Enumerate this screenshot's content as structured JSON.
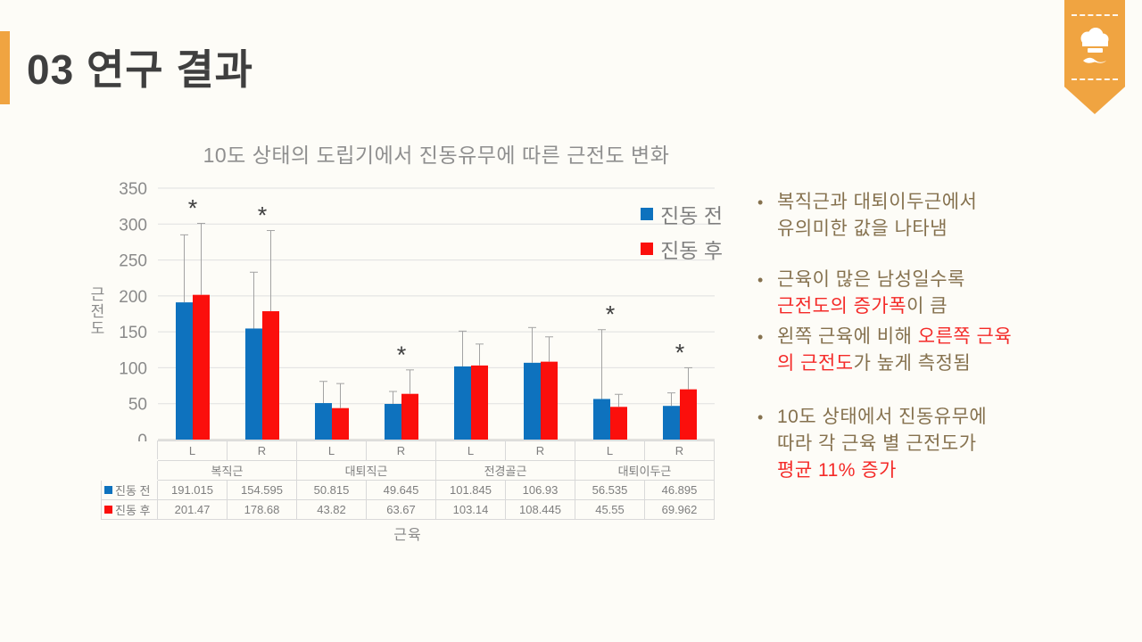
{
  "header": {
    "title": "03 연구 결과"
  },
  "bookmark": {
    "icon": "chef-hat-mustache"
  },
  "colors": {
    "accent_orange": "#F0A441",
    "chart_blue": "#0E72BE",
    "chart_red": "#FB0F0C",
    "bullet_text": "#85714E",
    "bullet_highlight": "#F42A28",
    "title_text": "#3F3F3F"
  },
  "chart_data": {
    "type": "bar",
    "title": "10도 상태의 도립기에서 진동유무에 따른 근전도 변화",
    "ylabel": "근전도",
    "xlabel": "근육",
    "ylim": [
      0,
      350
    ],
    "ytick_step": 50,
    "grid": true,
    "legend_position": "top-right",
    "group_labels": [
      "복직근",
      "대퇴직근",
      "전경골근",
      "대퇴이두근"
    ],
    "categories": [
      "L",
      "R",
      "L",
      "R",
      "L",
      "R",
      "L",
      "R"
    ],
    "series": [
      {
        "name": "진동 전",
        "color": "#0E72BE",
        "values": [
          191.015,
          154.595,
          50.815,
          49.645,
          101.845,
          106.93,
          56.535,
          46.895
        ],
        "error_top": [
          285,
          233,
          81,
          67,
          151,
          156,
          153,
          65
        ]
      },
      {
        "name": "진동 후",
        "color": "#FB0F0C",
        "values": [
          201.47,
          178.68,
          43.82,
          63.67,
          103.14,
          108.445,
          45.55,
          69.962
        ],
        "error_top": [
          301,
          291,
          78,
          97,
          133,
          143,
          63,
          100
        ]
      }
    ],
    "significance_marks": [
      true,
      true,
      false,
      true,
      false,
      false,
      true,
      true
    ],
    "significance_symbol": "*"
  },
  "table": {
    "lr_headers": [
      "L",
      "R",
      "L",
      "R",
      "L",
      "R",
      "L",
      "R"
    ],
    "group_headers": [
      "복직근",
      "대퇴직근",
      "전경골근",
      "대퇴이두근"
    ],
    "rows": [
      {
        "label": "진동 전",
        "swatch": "#0E72BE",
        "values": [
          "191.015",
          "154.595",
          "50.815",
          "49.645",
          "101.845",
          "106.93",
          "56.535",
          "46.895"
        ]
      },
      {
        "label": "진동 후",
        "swatch": "#FB0F0C",
        "values": [
          "201.47",
          "178.68",
          "43.82",
          "63.67",
          "103.14",
          "108.445",
          "45.55",
          "69.962"
        ]
      }
    ]
  },
  "bullets": [
    {
      "lines": [
        [
          {
            "text": "복직근과 대퇴이두근에서",
            "color": "default"
          }
        ],
        [
          {
            "text": "유의미한 값을 나타냄",
            "color": "default"
          }
        ]
      ]
    },
    {
      "lines": [
        [
          {
            "text": "근육이 많은 남성일수록",
            "color": "default"
          }
        ],
        [
          {
            "text": "근전도의 증가폭",
            "color": "red"
          },
          {
            "text": "이 큼",
            "color": "default"
          }
        ]
      ]
    },
    {
      "lines": [
        [
          {
            "text": "왼쪽 근육에 비해 ",
            "color": "default"
          },
          {
            "text": "오른쪽 근육",
            "color": "red"
          }
        ],
        [
          {
            "text": "의 근전도",
            "color": "red"
          },
          {
            "text": "가 높게 측정됨",
            "color": "default"
          }
        ]
      ]
    },
    {
      "lines": [
        [
          {
            "text": "10도 상태에서 진동유무에",
            "color": "default"
          }
        ],
        [
          {
            "text": "따라 각 근육 별 근전도가",
            "color": "default"
          }
        ],
        [
          {
            "text": "평균 11% 증가",
            "color": "red"
          }
        ]
      ]
    }
  ]
}
